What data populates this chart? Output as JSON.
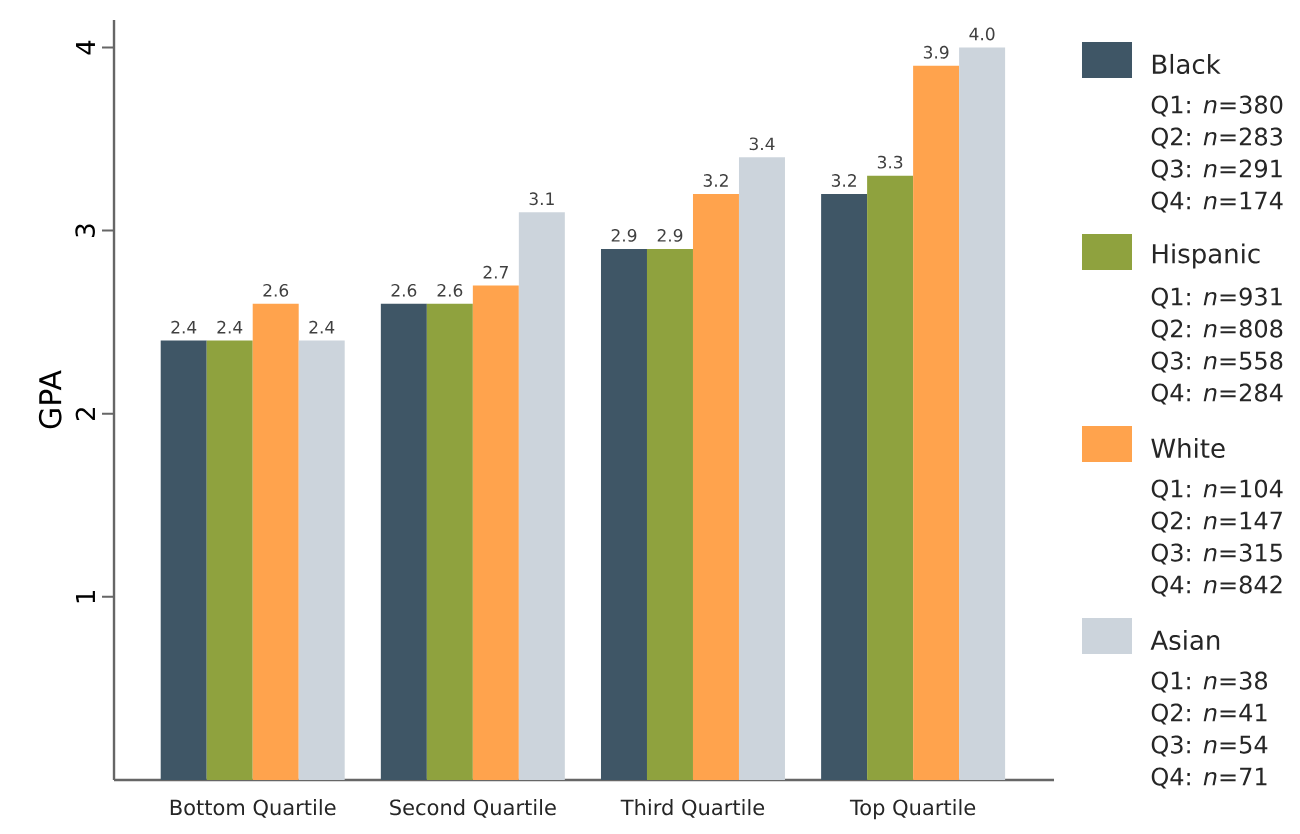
{
  "chart_data": {
    "type": "bar",
    "ylabel": "GPA",
    "categories": [
      "Bottom Quartile",
      "Second Quartile",
      "Third Quartile",
      "Top Quartile"
    ],
    "series": [
      {
        "name": "Black",
        "color": "#3f5666",
        "values": [
          2.4,
          2.6,
          2.9,
          3.2
        ],
        "value_labels": [
          "2.4",
          "2.6",
          "2.9",
          "3.2"
        ]
      },
      {
        "name": "Hispanic",
        "color": "#8fa23e",
        "values": [
          2.4,
          2.6,
          2.9,
          3.3
        ],
        "value_labels": [
          "2.4",
          "2.6",
          "2.9",
          "3.3"
        ]
      },
      {
        "name": "White",
        "color": "#ffa34d",
        "values": [
          2.6,
          2.7,
          3.2,
          3.9
        ],
        "value_labels": [
          "2.6",
          "2.7",
          "3.2",
          "3.9"
        ]
      },
      {
        "name": "Asian",
        "color": "#ccd4dc",
        "values": [
          2.4,
          3.1,
          3.4,
          4.0
        ],
        "value_labels": [
          "2.4",
          "3.1",
          "3.4",
          "4.0"
        ]
      }
    ],
    "ylim": [
      0,
      4.15
    ],
    "yticks": [
      1,
      2,
      3,
      4
    ],
    "legend": "right",
    "annotations": [
      "Q1: *n*=380",
      "Q2: *n*=283",
      "Q3: *n*=291",
      "Q4: *n*=174",
      "Q1: *n*=931",
      "Q2: *n*=808",
      "Q3: *n*=558",
      "Q4: *n*=284",
      "Q1: *n*=104",
      "Q2: *n*=147",
      "Q3: *n*=315",
      "Q4: *n*=842",
      "Q1: *n*=38",
      "Q2: *n*=41",
      "Q3: *n*=54",
      "Q4: *n*=71"
    ]
  }
}
